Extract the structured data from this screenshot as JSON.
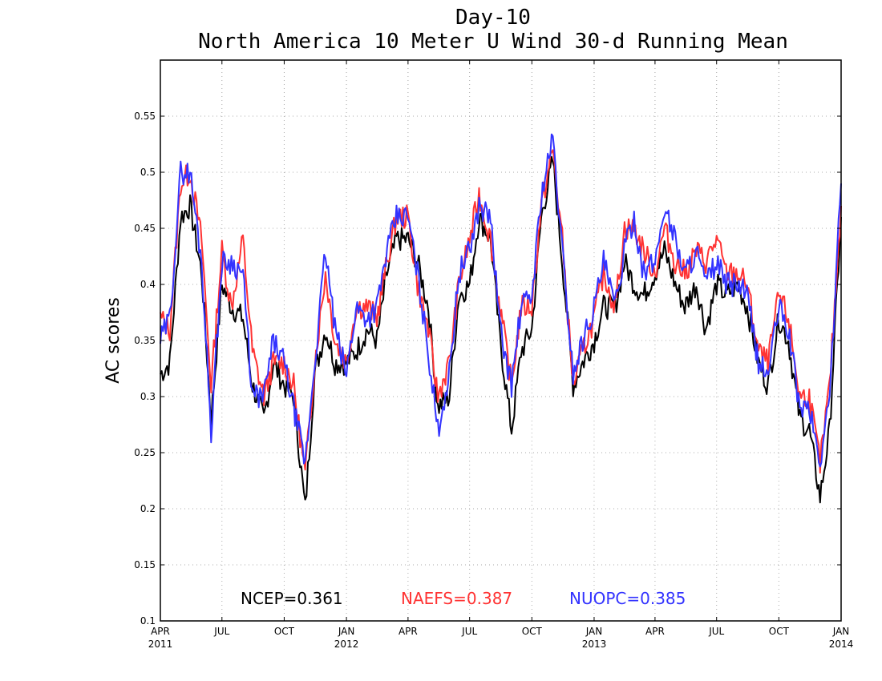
{
  "chart_data": {
    "type": "line",
    "title": "Day-10",
    "subtitle": "North America 10 Meter U Wind 30-d Running Mean",
    "ylabel": "AC scores",
    "xlabel": "",
    "ylim": [
      0.1,
      0.6
    ],
    "xlim": [
      "2011-04-01",
      "2014-01-01"
    ],
    "grid": true,
    "y_ticks": [
      0.1,
      0.15,
      0.2,
      0.25,
      0.3,
      0.35,
      0.4,
      0.45,
      0.5,
      0.55
    ],
    "y_tick_labels": [
      "0.1",
      "0.15",
      "0.2",
      "0.25",
      "0.3",
      "0.35",
      "0.4",
      "0.45",
      "0.5",
      "0.55"
    ],
    "x_ticks": [
      {
        "date": "2011-04-01",
        "label": "APR",
        "year": "2011"
      },
      {
        "date": "2011-07-01",
        "label": "JUL",
        "year": ""
      },
      {
        "date": "2011-10-01",
        "label": "OCT",
        "year": ""
      },
      {
        "date": "2012-01-01",
        "label": "JAN",
        "year": "2012"
      },
      {
        "date": "2012-04-01",
        "label": "APR",
        "year": ""
      },
      {
        "date": "2012-07-01",
        "label": "JUL",
        "year": ""
      },
      {
        "date": "2012-10-01",
        "label": "OCT",
        "year": ""
      },
      {
        "date": "2013-01-01",
        "label": "JAN",
        "year": "2013"
      },
      {
        "date": "2013-04-01",
        "label": "APR",
        "year": ""
      },
      {
        "date": "2013-07-01",
        "label": "JUL",
        "year": ""
      },
      {
        "date": "2013-10-01",
        "label": "OCT",
        "year": ""
      },
      {
        "date": "2014-01-01",
        "label": "JAN",
        "year": "2014"
      }
    ],
    "legend": {
      "placement": "bottom",
      "entries": [
        "NCEP=0.361",
        "NAEFS=0.387",
        "NUOPC=0.385"
      ]
    },
    "x": [
      "2011-04-01",
      "2011-04-15",
      "2011-05-01",
      "2011-05-15",
      "2011-06-01",
      "2011-06-15",
      "2011-07-01",
      "2011-07-15",
      "2011-08-01",
      "2011-08-15",
      "2011-09-01",
      "2011-09-15",
      "2011-10-01",
      "2011-10-15",
      "2011-11-01",
      "2011-11-15",
      "2011-12-01",
      "2011-12-15",
      "2012-01-01",
      "2012-01-15",
      "2012-02-01",
      "2012-02-15",
      "2012-03-01",
      "2012-03-15",
      "2012-04-01",
      "2012-04-15",
      "2012-05-01",
      "2012-05-15",
      "2012-06-01",
      "2012-06-15",
      "2012-07-01",
      "2012-07-15",
      "2012-08-01",
      "2012-08-15",
      "2012-09-01",
      "2012-09-15",
      "2012-10-01",
      "2012-10-15",
      "2012-11-01",
      "2012-11-15",
      "2012-12-01",
      "2012-12-15",
      "2013-01-01",
      "2013-01-15",
      "2013-02-01",
      "2013-02-15",
      "2013-03-01",
      "2013-03-15",
      "2013-04-01",
      "2013-04-15",
      "2013-05-01",
      "2013-05-15",
      "2013-06-01",
      "2013-06-15",
      "2013-07-01",
      "2013-07-15",
      "2013-08-01",
      "2013-08-15",
      "2013-09-01",
      "2013-09-15",
      "2013-10-01",
      "2013-10-15",
      "2013-11-01",
      "2013-11-15",
      "2013-12-01",
      "2013-12-15",
      "2014-01-01"
    ],
    "series": [
      {
        "name": "NCEP=0.361",
        "color": "#000000",
        "values": [
          0.32,
          0.33,
          0.46,
          0.47,
          0.41,
          0.28,
          0.4,
          0.38,
          0.37,
          0.31,
          0.28,
          0.33,
          0.31,
          0.3,
          0.2,
          0.32,
          0.36,
          0.33,
          0.33,
          0.34,
          0.36,
          0.35,
          0.41,
          0.44,
          0.44,
          0.42,
          0.38,
          0.29,
          0.3,
          0.39,
          0.4,
          0.46,
          0.44,
          0.35,
          0.27,
          0.34,
          0.36,
          0.46,
          0.51,
          0.42,
          0.31,
          0.33,
          0.35,
          0.38,
          0.38,
          0.42,
          0.4,
          0.39,
          0.41,
          0.43,
          0.4,
          0.38,
          0.4,
          0.36,
          0.4,
          0.39,
          0.4,
          0.38,
          0.33,
          0.31,
          0.37,
          0.35,
          0.28,
          0.27,
          0.21,
          0.27,
          0.46
        ]
      },
      {
        "name": "NAEFS=0.387",
        "color": "#ff3333",
        "values": [
          0.37,
          0.36,
          0.49,
          0.5,
          0.44,
          0.31,
          0.43,
          0.38,
          0.44,
          0.34,
          0.3,
          0.33,
          0.33,
          0.31,
          0.23,
          0.33,
          0.41,
          0.35,
          0.33,
          0.38,
          0.38,
          0.37,
          0.42,
          0.46,
          0.46,
          0.4,
          0.36,
          0.3,
          0.33,
          0.4,
          0.44,
          0.48,
          0.44,
          0.38,
          0.31,
          0.38,
          0.38,
          0.47,
          0.52,
          0.44,
          0.31,
          0.34,
          0.37,
          0.41,
          0.38,
          0.45,
          0.45,
          0.43,
          0.41,
          0.45,
          0.42,
          0.41,
          0.43,
          0.42,
          0.44,
          0.41,
          0.41,
          0.4,
          0.34,
          0.33,
          0.39,
          0.37,
          0.3,
          0.3,
          0.24,
          0.31,
          0.47
        ]
      },
      {
        "name": "NUOPC=0.385",
        "color": "#3333ff",
        "values": [
          0.35,
          0.37,
          0.5,
          0.5,
          0.42,
          0.27,
          0.42,
          0.42,
          0.41,
          0.3,
          0.3,
          0.35,
          0.33,
          0.29,
          0.24,
          0.33,
          0.43,
          0.36,
          0.32,
          0.38,
          0.37,
          0.38,
          0.43,
          0.46,
          0.46,
          0.41,
          0.34,
          0.27,
          0.32,
          0.41,
          0.43,
          0.47,
          0.46,
          0.36,
          0.31,
          0.38,
          0.39,
          0.48,
          0.53,
          0.43,
          0.32,
          0.35,
          0.38,
          0.42,
          0.38,
          0.43,
          0.46,
          0.41,
          0.42,
          0.47,
          0.44,
          0.41,
          0.43,
          0.4,
          0.42,
          0.4,
          0.4,
          0.39,
          0.33,
          0.32,
          0.38,
          0.36,
          0.29,
          0.29,
          0.24,
          0.3,
          0.49
        ]
      }
    ]
  }
}
